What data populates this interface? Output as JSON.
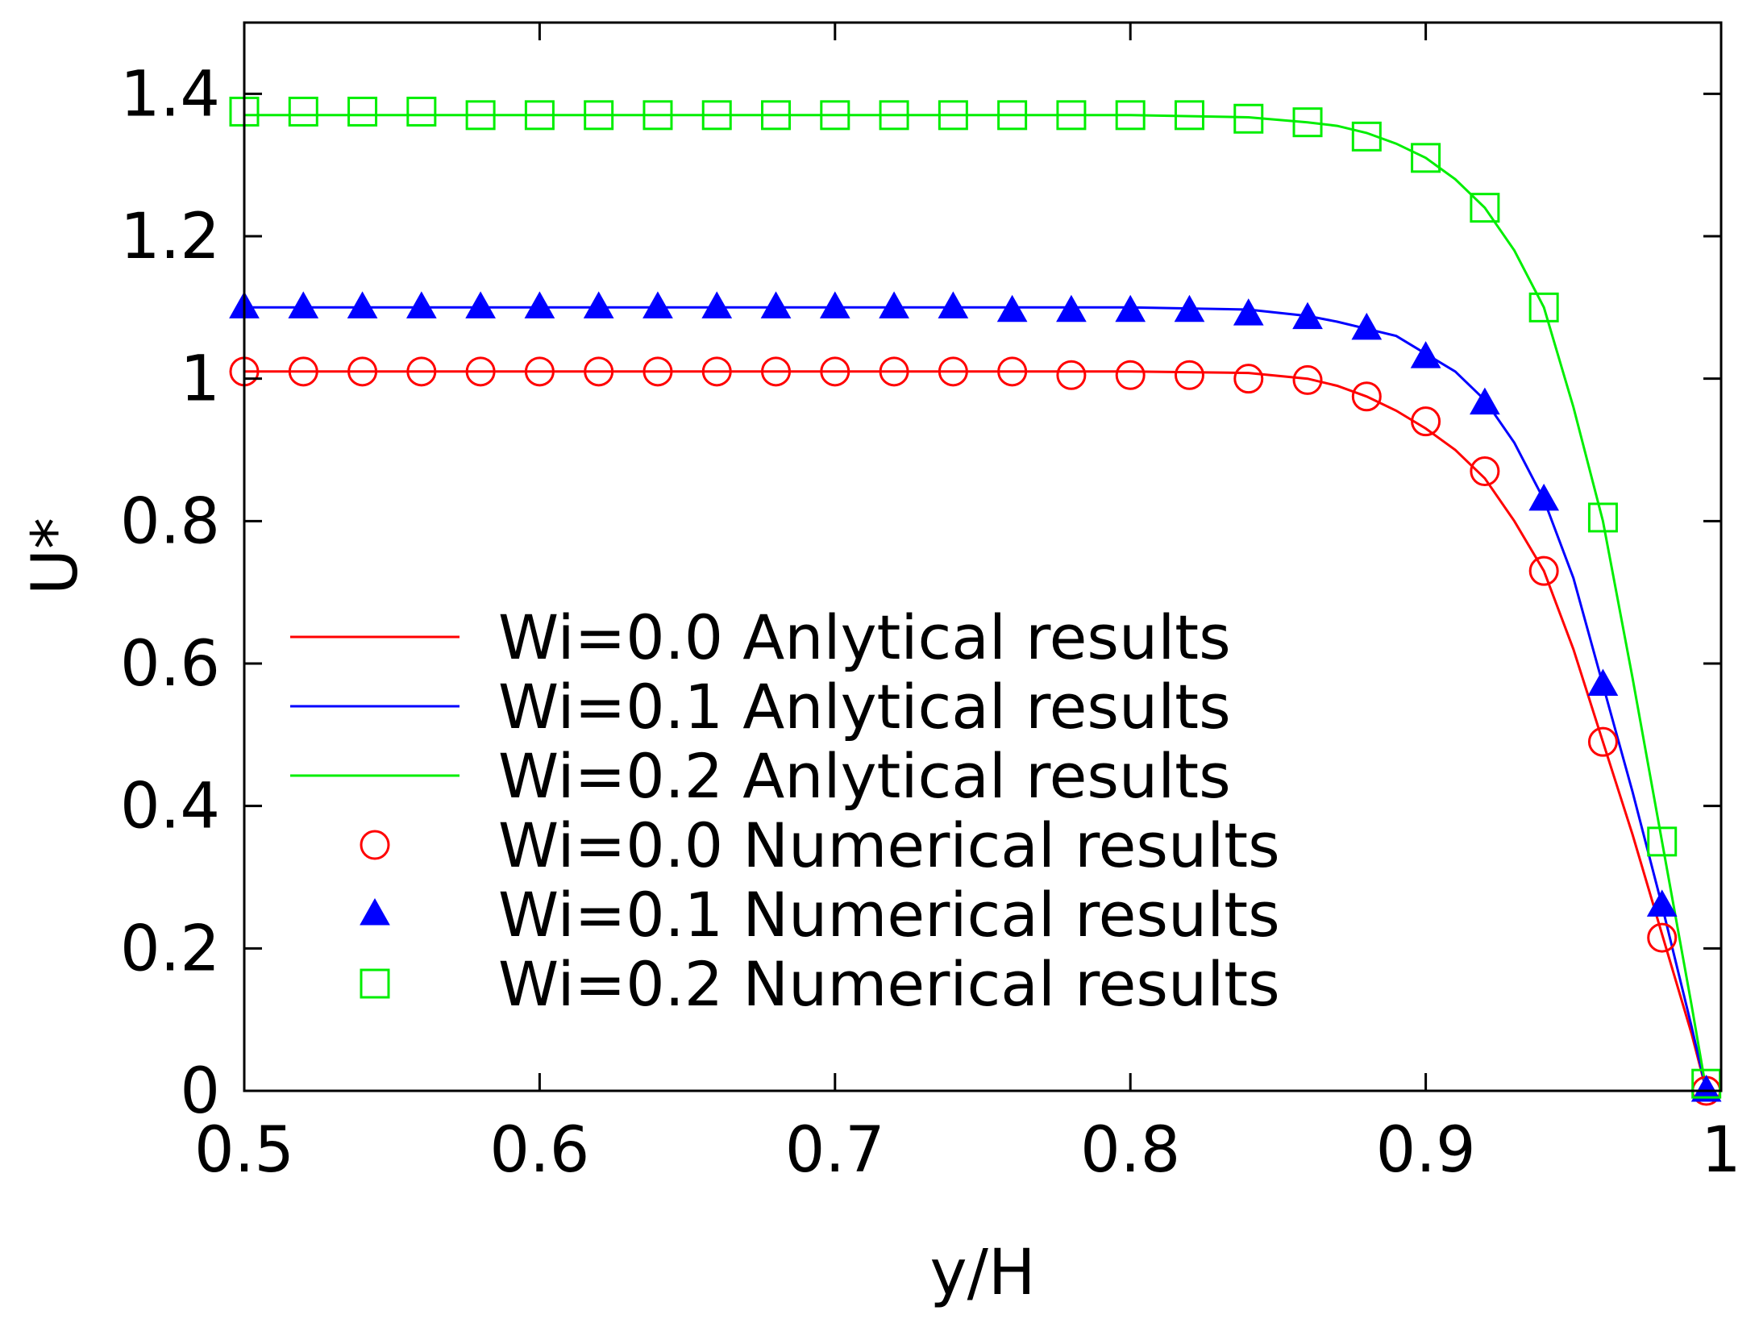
{
  "chart_data": {
    "type": "line",
    "title": "",
    "xlabel": "y/H",
    "ylabel": "U*",
    "xlim": [
      0.5,
      1.0
    ],
    "ylim": [
      0,
      1.5
    ],
    "xticks": [
      0.5,
      0.6,
      0.7,
      0.8,
      0.9,
      1.0
    ],
    "xtick_labels": [
      "0.5",
      "0.6",
      "0.7",
      "0.8",
      "0.9",
      "1"
    ],
    "yticks": [
      0,
      0.2,
      0.4,
      0.6,
      0.8,
      1.0,
      1.2,
      1.4
    ],
    "ytick_labels": [
      "0",
      "0.2",
      "0.4",
      "0.6",
      "0.8",
      "1",
      "1.2",
      "1.4"
    ],
    "grid": false,
    "legend_position": "left-center",
    "series": [
      {
        "name": "Wi=0.0 Anlytical results",
        "kind": "line",
        "color": "#ff0000",
        "x": [
          0.5,
          0.6,
          0.7,
          0.8,
          0.84,
          0.86,
          0.87,
          0.88,
          0.89,
          0.9,
          0.91,
          0.92,
          0.93,
          0.94,
          0.95,
          0.96,
          0.97,
          0.98,
          0.99,
          0.995
        ],
        "y": [
          1.01,
          1.01,
          1.01,
          1.01,
          1.008,
          1.0,
          0.99,
          0.975,
          0.955,
          0.93,
          0.9,
          0.86,
          0.8,
          0.73,
          0.62,
          0.49,
          0.36,
          0.22,
          0.08,
          0.0
        ]
      },
      {
        "name": "Wi=0.1 Anlytical results",
        "kind": "line",
        "color": "#0000ff",
        "x": [
          0.5,
          0.6,
          0.7,
          0.8,
          0.84,
          0.86,
          0.87,
          0.88,
          0.89,
          0.9,
          0.91,
          0.92,
          0.93,
          0.94,
          0.95,
          0.96,
          0.97,
          0.98,
          0.99,
          0.995
        ],
        "y": [
          1.1,
          1.1,
          1.1,
          1.1,
          1.097,
          1.088,
          1.08,
          1.07,
          1.06,
          1.035,
          1.01,
          0.97,
          0.91,
          0.83,
          0.72,
          0.57,
          0.42,
          0.26,
          0.09,
          0.0
        ]
      },
      {
        "name": "Wi=0.2 Anlytical results",
        "kind": "line",
        "color": "#00ee00",
        "x": [
          0.5,
          0.6,
          0.7,
          0.8,
          0.84,
          0.86,
          0.87,
          0.88,
          0.89,
          0.9,
          0.91,
          0.92,
          0.93,
          0.94,
          0.95,
          0.96,
          0.97,
          0.98,
          0.99,
          0.995
        ],
        "y": [
          1.37,
          1.37,
          1.37,
          1.37,
          1.367,
          1.36,
          1.355,
          1.345,
          1.33,
          1.31,
          1.28,
          1.24,
          1.18,
          1.1,
          0.96,
          0.8,
          0.58,
          0.35,
          0.12,
          0.0
        ]
      },
      {
        "name": "Wi=0.0 Numerical results",
        "kind": "marker",
        "marker": "circle",
        "color": "#ff0000",
        "x": [
          0.5,
          0.52,
          0.54,
          0.56,
          0.58,
          0.6,
          0.62,
          0.64,
          0.66,
          0.68,
          0.7,
          0.72,
          0.74,
          0.76,
          0.78,
          0.8,
          0.82,
          0.84,
          0.86,
          0.88,
          0.9,
          0.92,
          0.94,
          0.96,
          0.98,
          0.995
        ],
        "y": [
          1.01,
          1.01,
          1.01,
          1.01,
          1.01,
          1.01,
          1.01,
          1.01,
          1.01,
          1.01,
          1.01,
          1.01,
          1.01,
          1.01,
          1.005,
          1.005,
          1.005,
          1.0,
          0.998,
          0.975,
          0.94,
          0.87,
          0.73,
          0.49,
          0.215,
          0.0
        ]
      },
      {
        "name": "Wi=0.1 Numerical results",
        "kind": "marker",
        "marker": "triangle",
        "color": "#0000ff",
        "x": [
          0.5,
          0.52,
          0.54,
          0.56,
          0.58,
          0.6,
          0.62,
          0.64,
          0.66,
          0.68,
          0.7,
          0.72,
          0.74,
          0.76,
          0.78,
          0.8,
          0.82,
          0.84,
          0.86,
          0.88,
          0.9,
          0.92,
          0.94,
          0.96,
          0.98,
          0.995
        ],
        "y": [
          1.1,
          1.1,
          1.1,
          1.1,
          1.1,
          1.1,
          1.1,
          1.1,
          1.1,
          1.1,
          1.1,
          1.1,
          1.1,
          1.095,
          1.095,
          1.095,
          1.095,
          1.09,
          1.085,
          1.07,
          1.03,
          0.965,
          0.83,
          0.57,
          0.26,
          0.0
        ]
      },
      {
        "name": "Wi=0.2 Numerical results",
        "kind": "marker",
        "marker": "square",
        "color": "#00ee00",
        "x": [
          0.5,
          0.52,
          0.54,
          0.56,
          0.58,
          0.6,
          0.62,
          0.64,
          0.66,
          0.68,
          0.7,
          0.72,
          0.74,
          0.76,
          0.78,
          0.8,
          0.82,
          0.84,
          0.86,
          0.88,
          0.9,
          0.92,
          0.94,
          0.96,
          0.98,
          0.995
        ],
        "y": [
          1.375,
          1.375,
          1.375,
          1.375,
          1.37,
          1.37,
          1.37,
          1.37,
          1.37,
          1.37,
          1.37,
          1.37,
          1.37,
          1.37,
          1.37,
          1.37,
          1.37,
          1.365,
          1.36,
          1.34,
          1.31,
          1.24,
          1.1,
          0.805,
          0.35,
          0.01
        ]
      }
    ]
  }
}
